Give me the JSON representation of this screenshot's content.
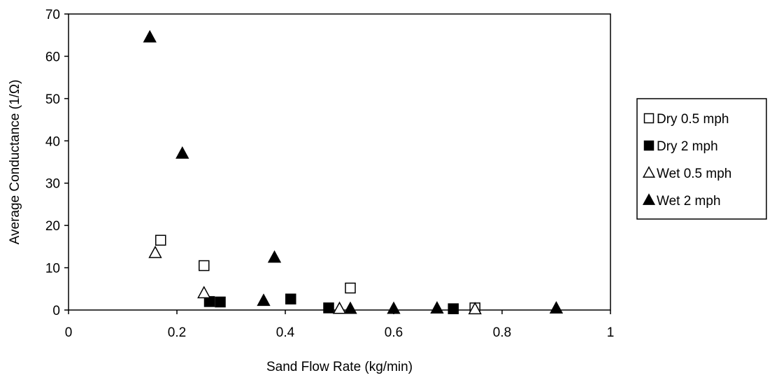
{
  "chart_data": {
    "type": "scatter",
    "title": "",
    "xlabel": "Sand Flow Rate (kg/min)",
    "ylabel": "Average Conductance (1/Ω)",
    "xlim": [
      0,
      1
    ],
    "ylim": [
      0,
      70
    ],
    "x_ticks": [
      0,
      0.2,
      0.4,
      0.6,
      0.8,
      1
    ],
    "x_tick_labels": [
      "0",
      "0.2",
      "0.4",
      "0.6",
      "0.8",
      "1"
    ],
    "y_ticks": [
      0,
      10,
      20,
      30,
      40,
      50,
      60,
      70
    ],
    "y_tick_labels": [
      "0",
      "10",
      "20",
      "30",
      "40",
      "50",
      "60",
      "70"
    ],
    "grid": false,
    "legend_position": "right",
    "series": [
      {
        "name": "Dry 0.5 mph",
        "marker": "square-open",
        "color": "#000000",
        "points": [
          {
            "x": 0.17,
            "y": 16.5
          },
          {
            "x": 0.25,
            "y": 10.5
          },
          {
            "x": 0.52,
            "y": 5.2
          },
          {
            "x": 0.75,
            "y": 0.5
          }
        ]
      },
      {
        "name": "Dry 2 mph",
        "marker": "square-filled",
        "color": "#000000",
        "points": [
          {
            "x": 0.26,
            "y": 2.0
          },
          {
            "x": 0.28,
            "y": 1.9
          },
          {
            "x": 0.41,
            "y": 2.6
          },
          {
            "x": 0.48,
            "y": 0.5
          },
          {
            "x": 0.71,
            "y": 0.3
          }
        ]
      },
      {
        "name": "Wet 0.5 mph",
        "marker": "triangle-open",
        "color": "#000000",
        "points": [
          {
            "x": 0.16,
            "y": 13.5
          },
          {
            "x": 0.25,
            "y": 4.0
          },
          {
            "x": 0.5,
            "y": 0.3
          },
          {
            "x": 0.75,
            "y": 0.2
          }
        ]
      },
      {
        "name": "Wet 2 mph",
        "marker": "triangle-filled",
        "color": "#000000",
        "points": [
          {
            "x": 0.15,
            "y": 64.5
          },
          {
            "x": 0.21,
            "y": 37.0
          },
          {
            "x": 0.36,
            "y": 2.2
          },
          {
            "x": 0.38,
            "y": 12.4
          },
          {
            "x": 0.52,
            "y": 0.3
          },
          {
            "x": 0.6,
            "y": 0.3
          },
          {
            "x": 0.68,
            "y": 0.4
          },
          {
            "x": 0.9,
            "y": 0.4
          }
        ]
      }
    ]
  }
}
